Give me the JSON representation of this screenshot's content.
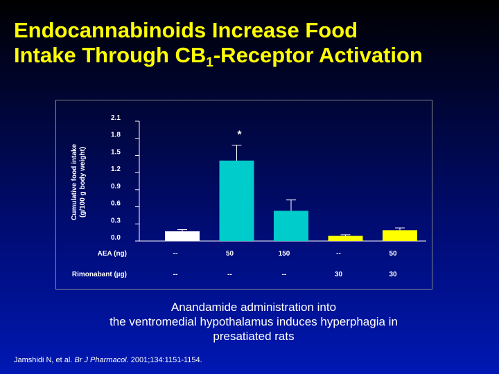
{
  "slide": {
    "title_line1": "Endocannabinoids Increase Food",
    "title_line2_prefix": "Intake Through CB",
    "title_subscript": "1",
    "title_line2_suffix": "-Receptor Activation",
    "caption_line1": "Anandamide administration into",
    "caption_line2": "the ventromedial hypothalamus induces hyperphagia in",
    "caption_line3": "presatiated rats",
    "citation_authors": "Jamshidi N, et al.",
    "citation_journal": "Br J Pharmacol.",
    "citation_details": "2001;134:1151-1154.",
    "colors": {
      "title": "#ffff00",
      "text": "#ffffff"
    }
  },
  "chart_data": {
    "type": "bar",
    "ylabel_line1": "Cumulative food intake",
    "ylabel_line2": "(g/100 g body weight)",
    "ylim": [
      0,
      2.1
    ],
    "yticks": [
      "0.0",
      "0.3",
      "0.6",
      "0.9",
      "1.2",
      "1.5",
      "1.8",
      "2.1"
    ],
    "ytick_values": [
      0.0,
      0.3,
      0.6,
      0.9,
      1.2,
      1.5,
      1.8,
      2.1
    ],
    "values": [
      0.17,
      1.41,
      0.53,
      0.09,
      0.19
    ],
    "errors": [
      0.03,
      0.27,
      0.19,
      0.02,
      0.04
    ],
    "significance": [
      "",
      "*",
      "",
      "",
      ""
    ],
    "bar_colors": [
      "#ffffff",
      "#00cccc",
      "#00cccc",
      "#ffff00",
      "#ffff00"
    ],
    "row1_label": "AEA (ng)",
    "row1_values": [
      "--",
      "50",
      "150",
      "--",
      "50"
    ],
    "row2_label": "Rimonabant (µg)",
    "row2_values": [
      "--",
      "--",
      "--",
      "30",
      "30"
    ],
    "grid": false,
    "legend": "none"
  }
}
